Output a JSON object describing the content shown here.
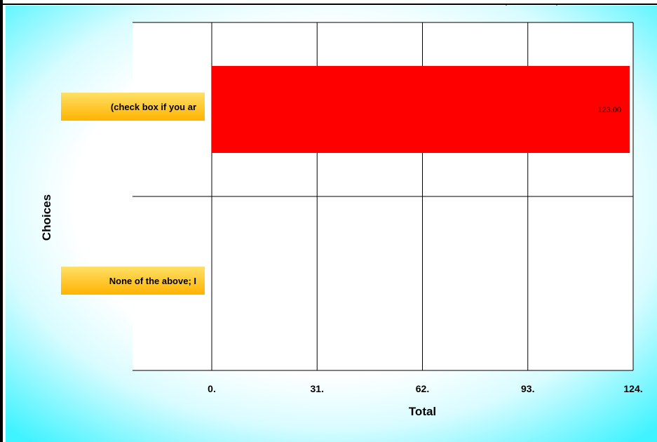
{
  "chart_data": {
    "type": "bar",
    "orientation": "horizontal",
    "title": "",
    "xlabel": "Total",
    "ylabel": "Choices",
    "categories": [
      "(check box if you ar",
      "None of the above; I"
    ],
    "series": [
      {
        "values": [
          123,
          0
        ],
        "color": "#ff0000",
        "data_labels": [
          "123.00",
          ""
        ]
      }
    ],
    "xlim": [
      0,
      124
    ],
    "x_ticks": [
      0,
      31,
      62,
      93,
      124
    ],
    "x_tick_labels": [
      "0.",
      "31.",
      "62.",
      "93.",
      "124."
    ],
    "grid": true,
    "legend": "none",
    "colors": {
      "bar": "#ff0000",
      "background_outer": "#44f4ff",
      "plot_area": "#ffffff",
      "category_label_bg": "#ffc61e"
    }
  }
}
